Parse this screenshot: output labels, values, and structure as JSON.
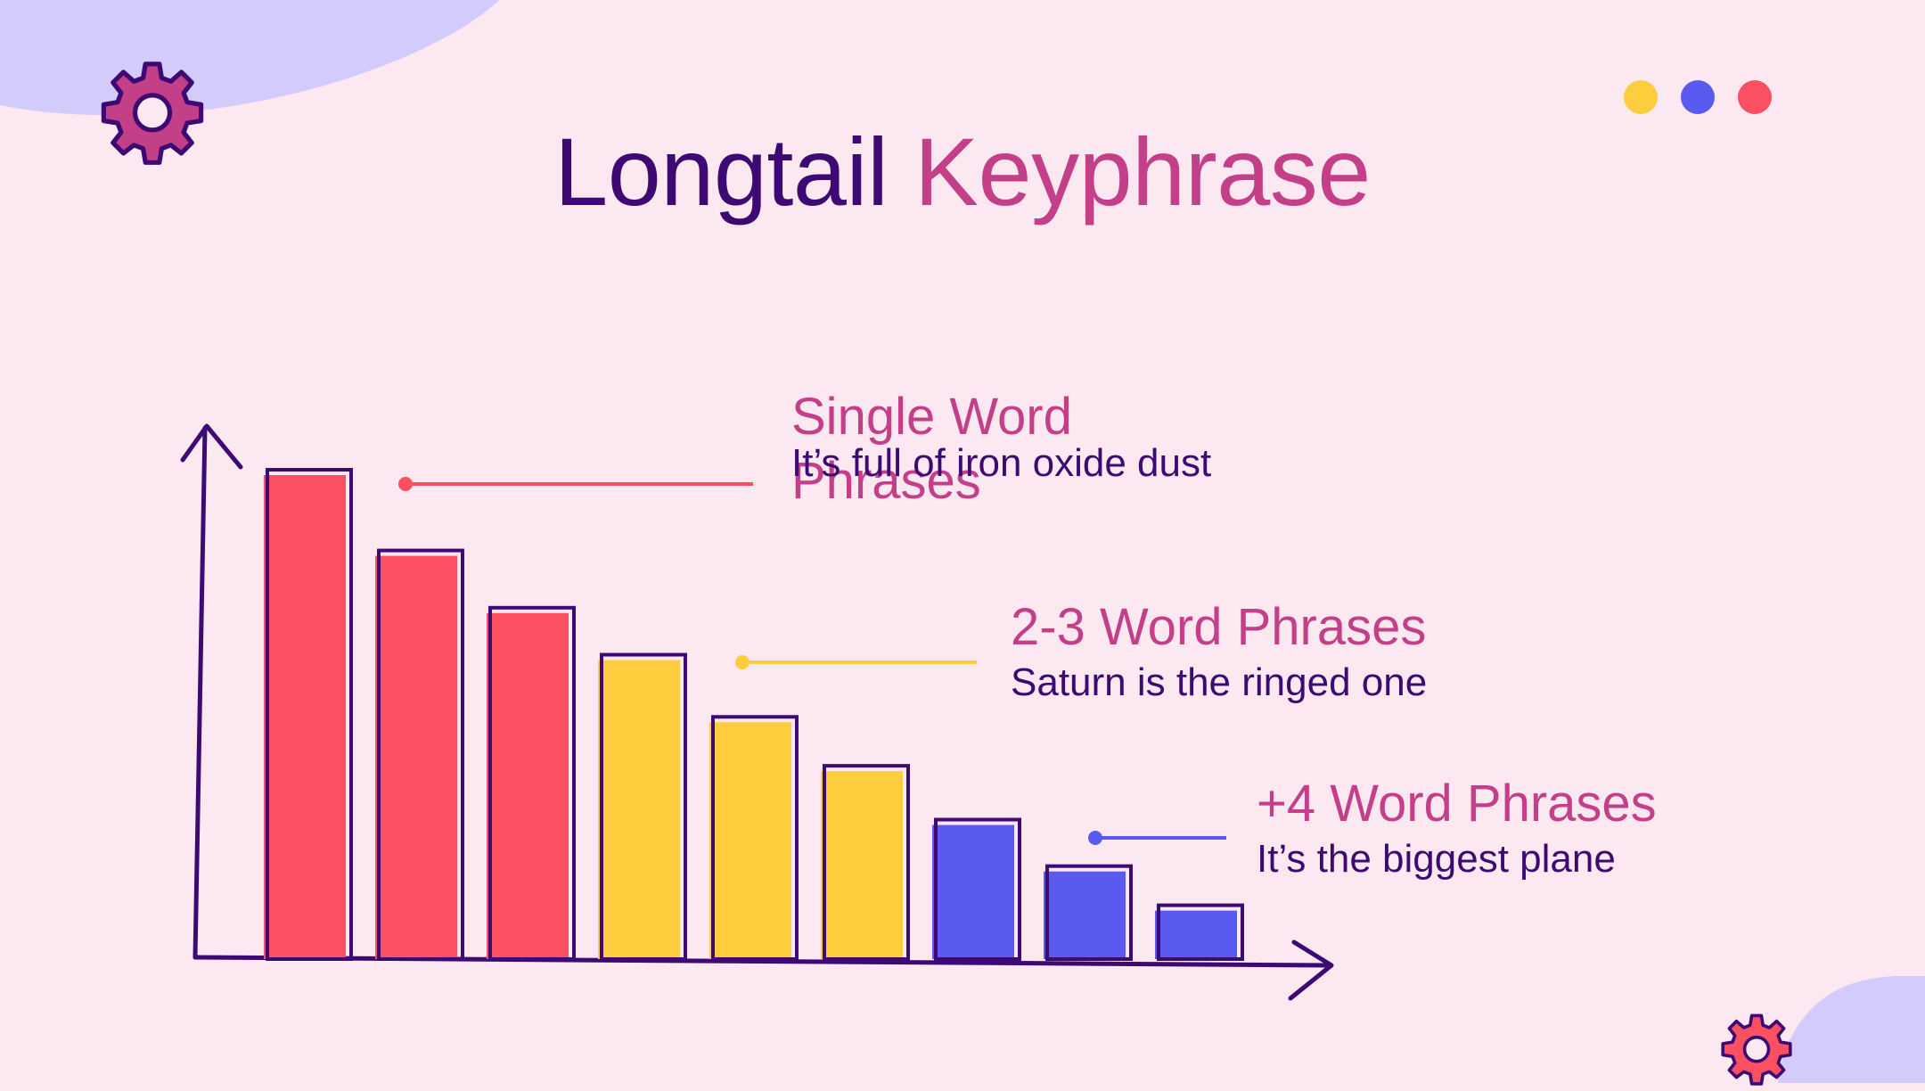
{
  "title": {
    "part1": "Longtail",
    "part2": "Keyphrase"
  },
  "colors": {
    "background": "#fce8f0",
    "blob": "#d2cbfb",
    "dark_purple": "#3d0a73",
    "pink": "#c33f87",
    "red": "#fb5062",
    "yellow": "#fdcd3e",
    "blue": "#5a5af0"
  },
  "decor": {
    "dots": [
      "#fdcd3e",
      "#5a5af0",
      "#fb5062"
    ],
    "icons": [
      "gear-icon",
      "gear-icon"
    ]
  },
  "chart_data": {
    "type": "bar",
    "values": [
      100,
      83.5,
      71.8,
      62.2,
      49.5,
      39.5,
      28.5,
      19,
      11
    ],
    "colors": [
      "#fb5062",
      "#fb5062",
      "#fb5062",
      "#fdcd3e",
      "#fdcd3e",
      "#fdcd3e",
      "#5a5af0",
      "#5a5af0",
      "#5a5af0"
    ],
    "ylim": [
      0,
      110
    ],
    "series": [
      {
        "name": "Single Word Phrases",
        "description": "It’s full of iron oxide dust",
        "color": "#fb5062"
      },
      {
        "name": "2-3 Word Phrases",
        "description": "Saturn is the ringed one",
        "color": "#fdcd3e"
      },
      {
        "name": "+4 Word Phrases",
        "description": "It’s the biggest plane",
        "color": "#5a5af0"
      }
    ]
  }
}
